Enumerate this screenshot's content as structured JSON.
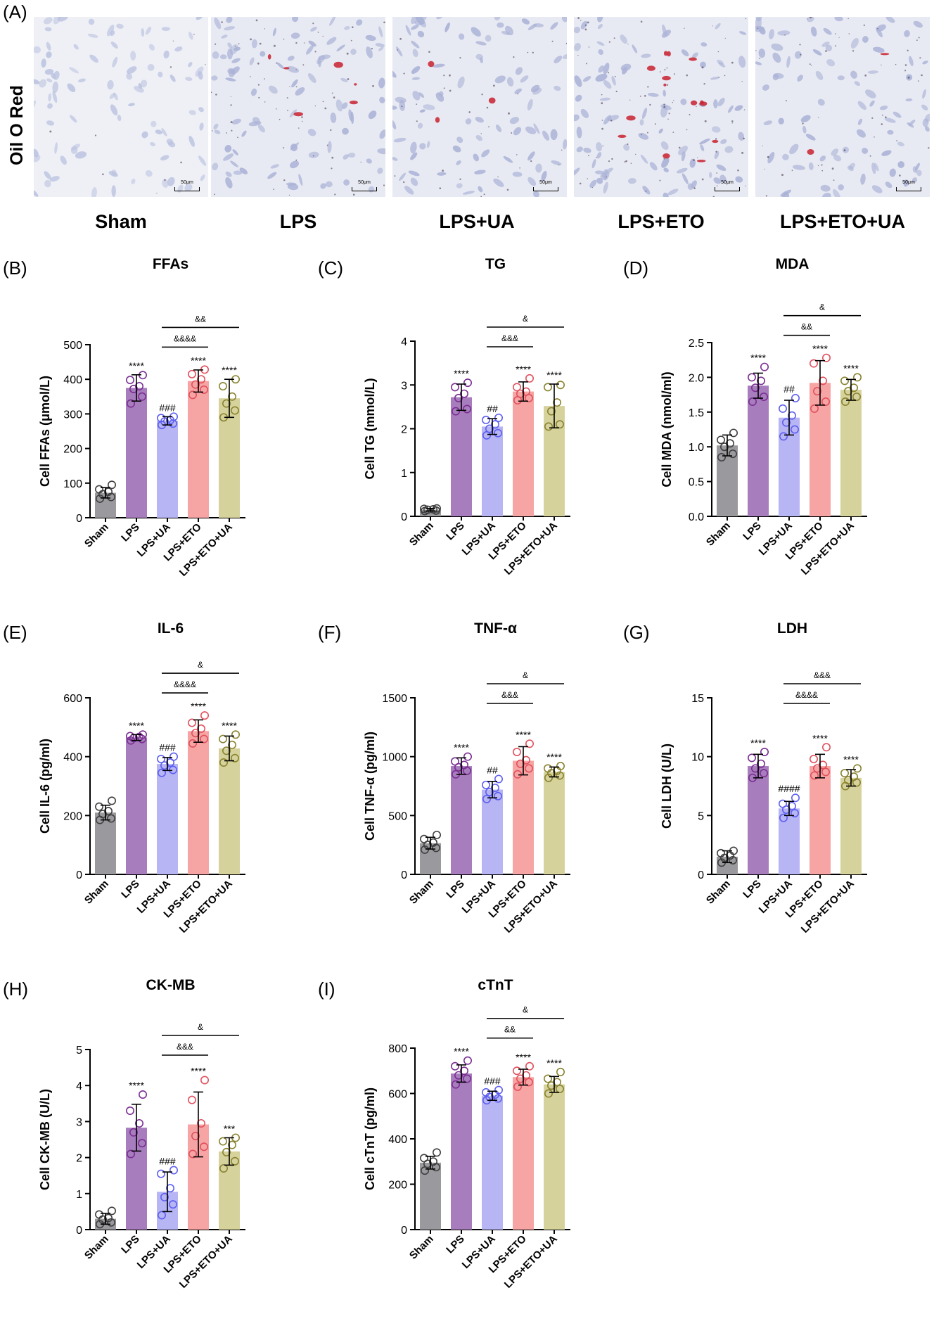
{
  "panel_a": {
    "letter": "(A)",
    "row_label": "Oil O Red",
    "scale_bar": "50μm",
    "groups": [
      "Sham",
      "LPS",
      "LPS+UA",
      "LPS+ETO",
      "LPS+ETO+UA"
    ]
  },
  "colors": {
    "Sham": "#9a9a9e",
    "LPS": "#a87dbd",
    "LPS+UA": "#b7b5f4",
    "LPS+ETO": "#f7a4a4",
    "LPS+ETO+UA": "#d6d29c",
    "Sham_pt": "#3f3f3f",
    "LPS_pt": "#7a2f92",
    "LPS+UA_pt": "#5d5ff0",
    "LPS+ETO_pt": "#e0515e",
    "LPS+ETO+UA_pt": "#8a8330"
  },
  "chart_data": [
    {
      "letter": "(B)",
      "type": "bar",
      "title": "FFAs",
      "ylabel": "Cell FFAs (μmol/L)",
      "categories": [
        "Sham",
        "LPS",
        "LPS+UA",
        "LPS+ETO",
        "LPS+ETO+UA"
      ],
      "values": [
        72,
        375,
        280,
        395,
        345
      ],
      "sd": [
        15,
        38,
        12,
        32,
        55
      ],
      "points": [
        [
          55,
          60,
          68,
          75,
          82,
          95
        ],
        [
          330,
          350,
          372,
          380,
          398,
          412
        ],
        [
          268,
          272,
          278,
          282,
          288,
          292
        ],
        [
          355,
          370,
          385,
          400,
          415,
          428
        ],
        [
          290,
          310,
          330,
          350,
          380,
          400
        ]
      ],
      "ylim": [
        0,
        500
      ],
      "yticks": [
        0,
        100,
        200,
        300,
        400,
        500
      ],
      "sig": [
        "",
        "****",
        "###",
        "****",
        "****"
      ],
      "comparisons": [
        {
          "from": 2,
          "to": 3,
          "label": "&&&&"
        },
        {
          "from": 2,
          "to": 4,
          "label": "&&"
        }
      ]
    },
    {
      "letter": "(C)",
      "type": "bar",
      "title": "TG",
      "ylabel": "Cell TG (mmol/L)",
      "categories": [
        "Sham",
        "LPS",
        "LPS+UA",
        "LPS+ETO",
        "LPS+ETO+UA"
      ],
      "values": [
        0.15,
        2.72,
        2.05,
        2.85,
        2.52
      ],
      "sd": [
        0.03,
        0.3,
        0.18,
        0.22,
        0.5
      ],
      "points": [
        [
          0.12,
          0.13,
          0.15,
          0.16,
          0.17,
          0.18
        ],
        [
          2.4,
          2.45,
          2.7,
          2.8,
          2.95,
          3.05
        ],
        [
          1.85,
          1.9,
          2.0,
          2.1,
          2.2,
          2.25
        ],
        [
          2.65,
          2.7,
          2.8,
          2.85,
          2.95,
          3.15
        ],
        [
          2.05,
          2.1,
          2.4,
          2.6,
          2.95,
          3.0
        ]
      ],
      "ylim": [
        0,
        4
      ],
      "yticks": [
        0,
        1,
        2,
        3,
        4
      ],
      "sig": [
        "",
        "****",
        "##",
        "****",
        "****"
      ],
      "comparisons": [
        {
          "from": 2,
          "to": 3,
          "label": "&&&"
        },
        {
          "from": 2,
          "to": 4,
          "label": "&"
        }
      ]
    },
    {
      "letter": "(D)",
      "type": "bar",
      "title": "MDA",
      "ylabel": "Cell MDA (nmol/ml)",
      "categories": [
        "Sham",
        "LPS",
        "LPS+UA",
        "LPS+ETO",
        "LPS+ETO+UA"
      ],
      "values": [
        1.02,
        1.88,
        1.42,
        1.92,
        1.82
      ],
      "sd": [
        0.15,
        0.18,
        0.25,
        0.32,
        0.15
      ],
      "points": [
        [
          0.85,
          0.9,
          1.0,
          1.05,
          1.1,
          1.2
        ],
        [
          1.65,
          1.72,
          1.85,
          1.95,
          2.0,
          2.15
        ],
        [
          1.15,
          1.25,
          1.35,
          1.45,
          1.55,
          1.7
        ],
        [
          1.55,
          1.65,
          1.8,
          1.95,
          2.2,
          2.28
        ],
        [
          1.65,
          1.72,
          1.8,
          1.85,
          1.95,
          2.0
        ]
      ],
      "ylim": [
        0,
        2.5
      ],
      "yticks": [
        0.0,
        0.5,
        1.0,
        1.5,
        2.0,
        2.5
      ],
      "sig": [
        "",
        "****",
        "##",
        "****",
        "****"
      ],
      "comparisons": [
        {
          "from": 2,
          "to": 3,
          "label": "&&"
        },
        {
          "from": 2,
          "to": 4,
          "label": "&"
        }
      ]
    },
    {
      "letter": "(E)",
      "type": "bar",
      "title": "IL-6",
      "ylabel": "Cell IL-6 (pg/ml)",
      "categories": [
        "Sham",
        "LPS",
        "LPS+UA",
        "LPS+ETO",
        "LPS+ETO+UA"
      ],
      "values": [
        210,
        465,
        375,
        487,
        428
      ],
      "sd": [
        25,
        10,
        22,
        38,
        42
      ],
      "points": [
        [
          185,
          190,
          205,
          215,
          230,
          250
        ],
        [
          455,
          460,
          463,
          467,
          470,
          475
        ],
        [
          345,
          355,
          370,
          380,
          392,
          400
        ],
        [
          445,
          460,
          480,
          495,
          515,
          540
        ],
        [
          380,
          395,
          420,
          440,
          460,
          475
        ]
      ],
      "ylim": [
        0,
        600
      ],
      "yticks": [
        0,
        200,
        400,
        600
      ],
      "sig": [
        "",
        "****",
        "###",
        "****",
        "****"
      ],
      "comparisons": [
        {
          "from": 2,
          "to": 3,
          "label": "&&&&"
        },
        {
          "from": 2,
          "to": 4,
          "label": "&"
        }
      ]
    },
    {
      "letter": "(F)",
      "type": "bar",
      "title": "TNF-α",
      "ylabel": "Cell TNF-α (pg/ml)",
      "categories": [
        "Sham",
        "LPS",
        "LPS+UA",
        "LPS+ETO",
        "LPS+ETO+UA"
      ],
      "values": [
        265,
        920,
        720,
        965,
        870
      ],
      "sd": [
        50,
        70,
        70,
        120,
        42
      ],
      "points": [
        [
          210,
          225,
          250,
          270,
          300,
          335
        ],
        [
          850,
          880,
          910,
          930,
          960,
          1000
        ],
        [
          640,
          665,
          700,
          735,
          760,
          810
        ],
        [
          850,
          900,
          940,
          970,
          1040,
          1110
        ],
        [
          820,
          840,
          860,
          880,
          900,
          920
        ]
      ],
      "ylim": [
        0,
        1500
      ],
      "yticks": [
        0,
        500,
        1000,
        1500
      ],
      "sig": [
        "",
        "****",
        "##",
        "****",
        "****"
      ],
      "comparisons": [
        {
          "from": 2,
          "to": 3,
          "label": "&&&"
        },
        {
          "from": 2,
          "to": 4,
          "label": "&"
        }
      ]
    },
    {
      "letter": "(G)",
      "type": "bar",
      "title": "LDH",
      "ylabel": "Cell LDH (U/L)",
      "categories": [
        "Sham",
        "LPS",
        "LPS+UA",
        "LPS+ETO",
        "LPS+ETO+UA"
      ],
      "values": [
        1.5,
        9.2,
        5.6,
        9.2,
        8.2
      ],
      "sd": [
        0.5,
        1.0,
        0.6,
        1.0,
        0.7
      ],
      "points": [
        [
          1.0,
          1.2,
          1.4,
          1.6,
          1.8,
          2.0
        ],
        [
          8.2,
          8.6,
          9.0,
          9.4,
          9.9,
          10.4
        ],
        [
          4.8,
          5.2,
          5.5,
          5.8,
          6.0,
          6.5
        ],
        [
          8.4,
          8.7,
          9.0,
          9.3,
          9.8,
          10.8
        ],
        [
          7.5,
          7.8,
          8.0,
          8.3,
          8.6,
          9.0
        ]
      ],
      "ylim": [
        0,
        15
      ],
      "yticks": [
        0,
        5,
        10,
        15
      ],
      "sig": [
        "",
        "****",
        "####",
        "****",
        "****"
      ],
      "comparisons": [
        {
          "from": 2,
          "to": 3,
          "label": "&&&&"
        },
        {
          "from": 2,
          "to": 4,
          "label": "&&&"
        }
      ]
    },
    {
      "letter": "(H)",
      "type": "bar",
      "title": "CK-MB",
      "ylabel": "Cell CK-MB (U/L)",
      "categories": [
        "Sham",
        "LPS",
        "LPS+UA",
        "LPS+ETO",
        "LPS+ETO+UA"
      ],
      "values": [
        0.3,
        2.83,
        1.05,
        2.92,
        2.17
      ],
      "sd": [
        0.15,
        0.65,
        0.55,
        0.9,
        0.38
      ],
      "points": [
        [
          0.15,
          0.2,
          0.28,
          0.32,
          0.42,
          0.52
        ],
        [
          2.1,
          2.4,
          2.7,
          2.95,
          3.3,
          3.75
        ],
        [
          0.4,
          0.7,
          0.9,
          1.15,
          1.55,
          1.65
        ],
        [
          2.1,
          2.3,
          2.6,
          2.95,
          3.6,
          4.15
        ],
        [
          1.7,
          1.9,
          2.15,
          2.35,
          2.45,
          2.55
        ]
      ],
      "ylim": [
        0,
        5
      ],
      "yticks": [
        0,
        1,
        2,
        3,
        4,
        5
      ],
      "sig": [
        "",
        "****",
        "###",
        "****",
        "***"
      ],
      "comparisons": [
        {
          "from": 2,
          "to": 3,
          "label": "&&&"
        },
        {
          "from": 2,
          "to": 4,
          "label": "&"
        }
      ]
    },
    {
      "letter": "(I)",
      "type": "bar",
      "title": "cTnT",
      "ylabel": "Cell cTnT (pg/ml)",
      "categories": [
        "Sham",
        "LPS",
        "LPS+UA",
        "LPS+ETO",
        "LPS+ETO+UA"
      ],
      "values": [
        295,
        688,
        590,
        672,
        640
      ],
      "sd": [
        28,
        38,
        20,
        35,
        35
      ],
      "points": [
        [
          260,
          275,
          290,
          300,
          315,
          340
        ],
        [
          640,
          665,
          680,
          700,
          720,
          745
        ],
        [
          570,
          578,
          585,
          595,
          605,
          615
        ],
        [
          630,
          650,
          665,
          680,
          700,
          720
        ],
        [
          600,
          620,
          635,
          650,
          665,
          695
        ]
      ],
      "ylim": [
        0,
        800
      ],
      "yticks": [
        0,
        200,
        400,
        600,
        800
      ],
      "sig": [
        "",
        "****",
        "###",
        "****",
        "****"
      ],
      "comparisons": [
        {
          "from": 2,
          "to": 3,
          "label": "&&"
        },
        {
          "from": 2,
          "to": 4,
          "label": "&"
        }
      ]
    }
  ]
}
